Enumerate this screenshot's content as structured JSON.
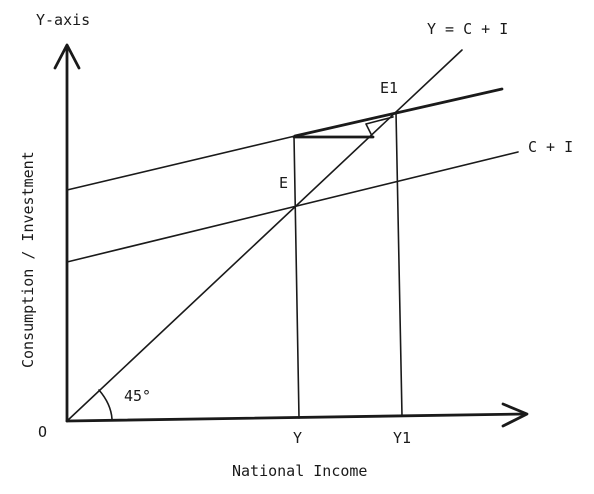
{
  "diagram": {
    "y_axis_title": "Y-axis",
    "y_axis_label": "Consumption / Investment",
    "x_axis_label": "National Income",
    "origin_label": "O",
    "angle_label": "45°",
    "line_45_label": "Y = C + I",
    "c_plus_i_label": "C + I",
    "point_e_label": "E",
    "point_e1_label": "E1",
    "x_tick_y": "Y",
    "x_tick_y1": "Y1"
  }
}
